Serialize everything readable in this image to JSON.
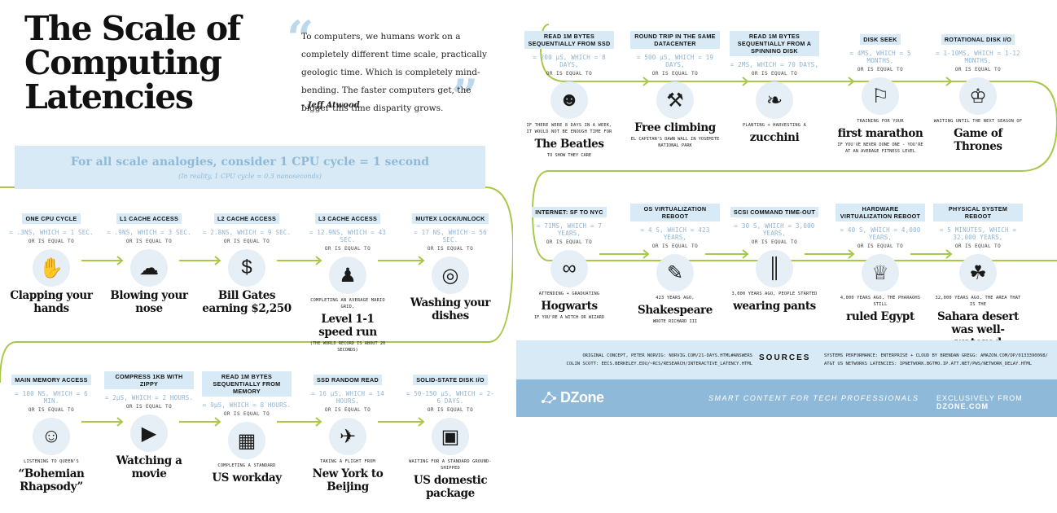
{
  "title": "The Scale of Computing Latencies",
  "title_lines": [
    "The Scale of",
    "Computing",
    "Latencies"
  ],
  "quote": {
    "text": "To computers, we humans work on a completely different time scale, practically geologic time. Which is completely mind-bending. The faster computers get, the bigger this time disparity grows.",
    "author": "- Jeff Atwood"
  },
  "banner": {
    "headline": "For all scale analogies, consider 1 CPU cycle = 1 second",
    "note": "(In reality, 1 CPU cycle = 0.3 nanoseconds)"
  },
  "equal_to": "OR IS EQUAL TO",
  "colors": {
    "accent": "#8fb9d8",
    "light": "#d8eaf5",
    "track": "#a8c84c"
  },
  "left_rows": [
    [
      {
        "label": "ONE CPU CYCLE",
        "value": "= .3NS, WHICH = 1 SEC.",
        "pre": "",
        "big": "Clapping your hands",
        "post": "",
        "icon": "clap-icon"
      },
      {
        "label": "L1 CACHE ACCESS",
        "value": "= .9NS, WHICH = 3 SEC.",
        "pre": "",
        "big": "Blowing your nose",
        "post": "",
        "icon": "tissue-icon"
      },
      {
        "label": "L2 CACHE ACCESS",
        "value": "= 2.8NS, WHICH = 9 SEC.",
        "pre": "",
        "big": "Bill Gates earning $2,250",
        "post": "",
        "icon": "money-icon"
      },
      {
        "label": "L3 CACHE ACCESS",
        "value": "= 12.9NS, WHICH = 43 SEC.",
        "pre": "COMPLETING AN AVERAGE MARIO GRID,",
        "big": "Level 1-1 speed run",
        "post": "(THE WORLD RECORD IS ABOUT 20 SECONDS)",
        "icon": "mario-icon"
      },
      {
        "label": "MUTEX LOCK/UNLOCK",
        "value": "= 17 NS, WHICH = 56 SEC.",
        "pre": "",
        "big": "Washing your dishes",
        "post": "",
        "icon": "dish-icon"
      }
    ],
    [
      {
        "label": "MAIN MEMORY ACCESS",
        "value": "= 100 NS, WHICH = 6 MIN.",
        "pre": "LISTENING TO QUEEN'S",
        "big": "“Bohemian Rhapsody”",
        "post": "",
        "icon": "freddie-icon"
      },
      {
        "label": "COMPRESS 1KB WITH ZIPPY",
        "value": "= 2μS, WHICH = 2 HOURS.",
        "pre": "",
        "big": "Watching a movie",
        "post": "",
        "icon": "play-icon"
      },
      {
        "label": "READ 1M BYTES SEQUENTIALLY FROM MEMORY",
        "value": "= 9μS, WHICH = 8 HOURS.",
        "pre": "COMPLETING A STANDARD",
        "big": "US workday",
        "post": "",
        "icon": "desk-icon"
      },
      {
        "label": "SSD RANDOM READ",
        "value": "= 16 μS, WHICH = 14 HOURS.",
        "pre": "TAKING A FLIGHT FROM",
        "big": "New York to Beijing",
        "post": "",
        "icon": "globe-icon"
      },
      {
        "label": "SOLID-STATE DISK I/O",
        "value": "= 50-150 μS, WHICH = 2-6 DAYS.",
        "pre": "WAITING FOR A STANDARD GROUND-SHIPPED",
        "big": "US domestic package",
        "post": "",
        "icon": "box-icon"
      }
    ]
  ],
  "right_rows": [
    [
      {
        "label": "READ 1M BYTES SEQUENTIALLY FROM SSD",
        "value": "= 200 μS, WHICH = 8 DAYS,",
        "pre": "IF THERE WERE 8 DAYS IN A WEEK, IT WOULD NOT BE ENOUGH TIME FOR",
        "big": "The Beatles",
        "post": "TO SHOW THEY CARE",
        "icon": "beatles-icon"
      },
      {
        "label": "ROUND TRIP IN THE SAME DATACENTER",
        "value": "= 500 μS, WHICH = 19 DAYS,",
        "pre": "",
        "big": "Free climbing",
        "post": "EL CAPITAN'S DAWN WALL IN YOSEMITE NATIONAL PARK",
        "icon": "backpack-icon"
      },
      {
        "label": "READ 1M BYTES SEQUENTIALLY FROM A SPINNING DISK",
        "value": "= 2MS, WHICH = 70 DAYS,",
        "pre": "PLANTING + HARVESTING A",
        "big": "zucchini",
        "post": "",
        "icon": "zucchini-icon"
      },
      {
        "label": "DISK SEEK",
        "value": "= 4MS, WHICH = 5 MONTHS,",
        "pre": "TRAINING FOR YOUR",
        "big": "first marathon",
        "post": "IF YOU'VE NEVER DONE ONE - YOU'RE AT AN AVERAGE FITNESS LEVEL",
        "icon": "runner-icon"
      },
      {
        "label": "ROTATIONAL DISK I/O",
        "value": "= 1-10MS, WHICH = 1-12 MONTHS,",
        "pre": "WAITING UNTIL THE NEXT SEASON OF",
        "big": "Game of Thrones",
        "post": "",
        "icon": "throne-icon"
      }
    ],
    [
      {
        "label": "INTERNET: SF TO NYC",
        "value": "= 71MS, WHICH = 7 YEARS,",
        "pre": "ATTENDING + GRADUATING",
        "big": "Hogwarts",
        "post": "IF YOU'RE A WITCH OR WIZARD",
        "icon": "glasses-icon"
      },
      {
        "label": "OS VIRTUALIZATION REBOOT",
        "value": "= 4 S, WHICH = 423 YEARS,",
        "pre": "423 YEARS AGO,",
        "big": "Shakespeare",
        "post": "WROTE RICHARD III",
        "icon": "shakespeare-icon"
      },
      {
        "label": "SCSI COMMAND TIME-OUT",
        "value": "= 30 S, WHICH = 3,000 YEARS,",
        "pre": "3,000 YEARS AGO, PEOPLE STARTED",
        "big": "wearing pants",
        "post": "",
        "icon": "pants-icon"
      },
      {
        "label": "HARDWARE VIRTUALIZATION REBOOT",
        "value": "= 40 S, WHICH = 4,000 YEARS,",
        "pre": "4,000 YEARS AGO, THE PHARAOHS STILL",
        "big": "ruled Egypt",
        "post": "",
        "icon": "nefertiti-icon"
      },
      {
        "label": "PHYSICAL SYSTEM REBOOT",
        "value": "= 5 MINUTES, WHICH = 32,000 YEARS,",
        "pre": "32,000 YEARS AGO, THE AREA THAT IS THE",
        "big": "Sahara desert was well-watered",
        "post": "",
        "icon": "island-icon"
      }
    ]
  ],
  "sources": {
    "left_lines": [
      "ORIGINAL CONCEPT, PETER NORVIG: NORVIG.COM/21-DAYS.HTML#ANSWERS",
      "COLIN SCOTT: EECS.BERKELEY.EDU/~RCS/RESEARCH/INTERACTIVE_LATENCY.HTML"
    ],
    "heading": "SOURCES",
    "right_lines": [
      "SYSTEMS PERFORMANCE: ENTERPRISE + CLOUD BY BRENDAN GREGG: AMAZON.COM/DP/0133390098/",
      "AT&T US NETWORKS LATENCIES: IPNETWORK.BGTMO.IP.ATT.NET/PWS/NETWORK_DELAY.HTML"
    ]
  },
  "footer": {
    "logo": "DZone",
    "tagline": "SMART CONTENT FOR TECH PROFESSIONALS",
    "exclusive_prefix": "EXCLUSIVELY FROM",
    "exclusive_site": "DZONE.COM"
  }
}
